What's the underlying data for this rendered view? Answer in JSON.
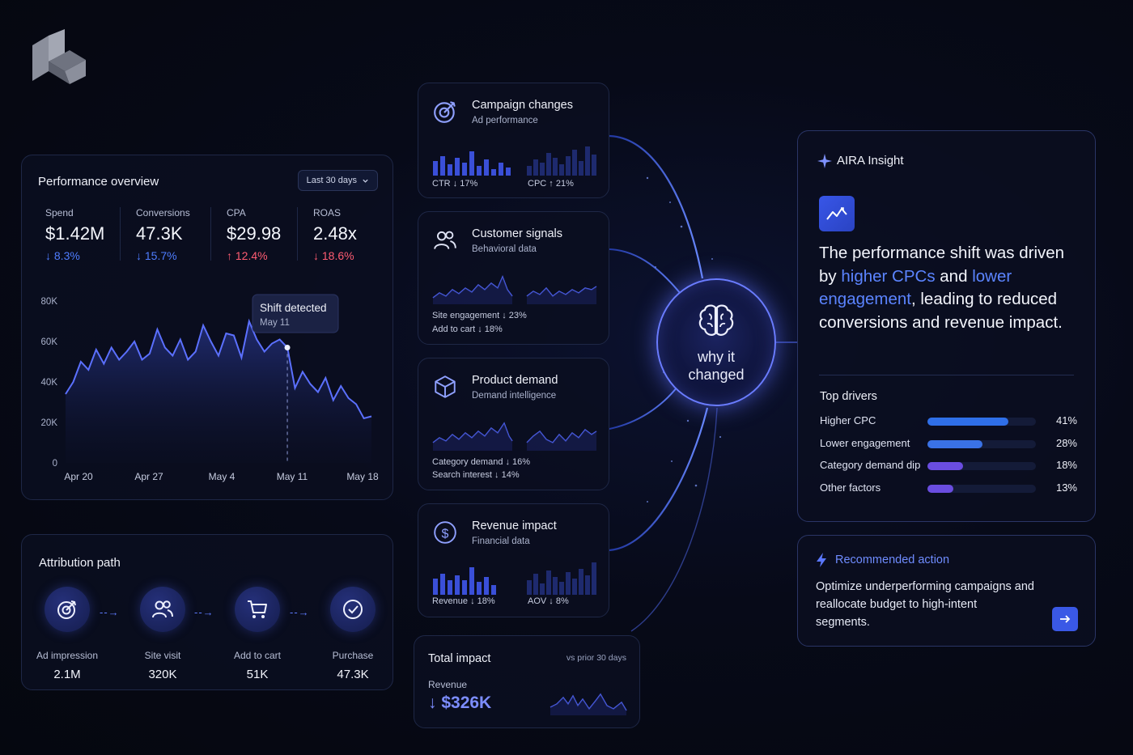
{
  "performance": {
    "title": "Performance overview",
    "range": "Last 30 days",
    "kpis": [
      {
        "label": "Spend",
        "value": "$1.42M",
        "change": "↓ 8.3%",
        "tone": "blue"
      },
      {
        "label": "Conversions",
        "value": "47.3K",
        "change": "↓ 15.7%",
        "tone": "blue"
      },
      {
        "label": "CPA",
        "value": "$29.98",
        "change": "↑ 12.4%",
        "tone": "red"
      },
      {
        "label": "ROAS",
        "value": "2.48x",
        "change": "↓ 18.6%",
        "tone": "red"
      }
    ],
    "annotation": {
      "title": "Shift detected",
      "date": "May 11"
    }
  },
  "chart_data": {
    "type": "area",
    "x_ticks": [
      "Apr 20",
      "Apr 27",
      "May 4",
      "May 11",
      "May 18"
    ],
    "y_ticks": [
      "0",
      "20K",
      "40K",
      "60K",
      "80K"
    ],
    "ylim": [
      0,
      80000
    ],
    "values": [
      34000,
      40000,
      50000,
      46000,
      56000,
      49000,
      57000,
      51000,
      55000,
      60000,
      51000,
      54000,
      66000,
      57000,
      53000,
      61000,
      51000,
      55000,
      68000,
      60000,
      53000,
      64000,
      63000,
      52000,
      70000,
      61000,
      55000,
      59000,
      61000,
      57000,
      37000,
      45000,
      39000,
      35000,
      42000,
      31000,
      38000,
      32000,
      29000,
      22000,
      23000
    ],
    "grid": false,
    "legend": "none"
  },
  "attribution": {
    "title": "Attribution path",
    "steps": [
      {
        "label": "Ad impression",
        "value": "2.1M",
        "icon": "target-icon"
      },
      {
        "label": "Site visit",
        "value": "320K",
        "icon": "users-icon"
      },
      {
        "label": "Add to cart",
        "value": "51K",
        "icon": "cart-icon"
      },
      {
        "label": "Purchase",
        "value": "47.3K",
        "icon": "check-circle-icon"
      }
    ]
  },
  "cards": [
    {
      "title": "Campaign changes",
      "subtitle": "Ad performance",
      "metrics": [
        "CTR ↓ 17%",
        "CPC ↑ 21%"
      ],
      "icon": "target-icon"
    },
    {
      "title": "Customer signals",
      "subtitle": "Behavioral data",
      "metrics": [
        "Site engagement ↓ 23%",
        "Add to cart ↓ 18%"
      ],
      "icon": "users-icon"
    },
    {
      "title": "Product demand",
      "subtitle": "Demand intelligence",
      "metrics": [
        "Category demand ↓ 16%",
        "Search interest ↓ 14%"
      ],
      "icon": "cube-icon"
    },
    {
      "title": "Revenue impact",
      "subtitle": "Financial data",
      "metrics": [
        "Revenue ↓ 18%",
        "AOV ↓ 8%"
      ],
      "icon": "dollar-icon"
    }
  ],
  "total": {
    "title": "Total impact",
    "vs": "vs prior 30 days",
    "label": "Revenue",
    "value": "↓ $326K"
  },
  "orb": {
    "line1": "why it",
    "line2": "changed"
  },
  "aira": {
    "title": "AIRA Insight",
    "headline_parts": [
      "The performance shift was driven by ",
      "higher CPCs",
      " and ",
      "lower engagement",
      ", leading to reduced conversions and revenue impact."
    ],
    "drivers_title": "Top drivers",
    "drivers": [
      {
        "label": "Higher CPC",
        "pct": "41%",
        "value": 41,
        "color": "#2f6fe8"
      },
      {
        "label": "Lower engagement",
        "pct": "28%",
        "value": 28,
        "color": "#3a72e6"
      },
      {
        "label": "Category demand dip",
        "pct": "18%",
        "value": 18,
        "color": "#6a4de0"
      },
      {
        "label": "Other factors",
        "pct": "13%",
        "value": 13,
        "color": "#6a4de0"
      }
    ]
  },
  "recommend": {
    "title": "Recommended action",
    "text": "Optimize underperforming campaigns and reallocate budget to high-intent segments."
  },
  "colors": {
    "accent": "#5b84ff",
    "down_red": "#ff5c72",
    "orb": "#6a7cff"
  }
}
